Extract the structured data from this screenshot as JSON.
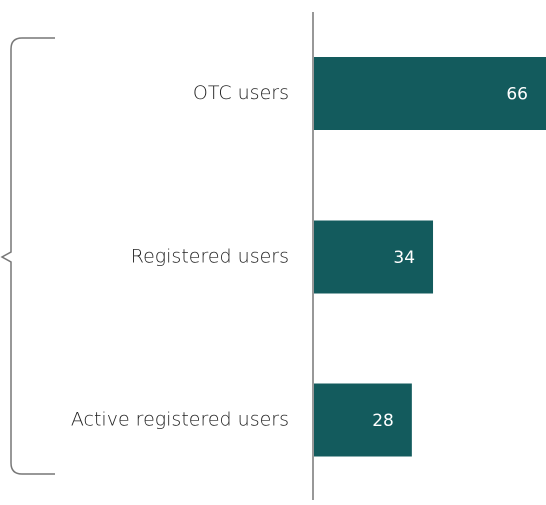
{
  "chart_data": {
    "type": "hbar",
    "categories": [
      "OTC users",
      "Registered users",
      "Active registered users"
    ],
    "values": [
      66,
      34,
      28
    ],
    "color": "#135b5d",
    "xlim": [
      0,
      66
    ]
  }
}
